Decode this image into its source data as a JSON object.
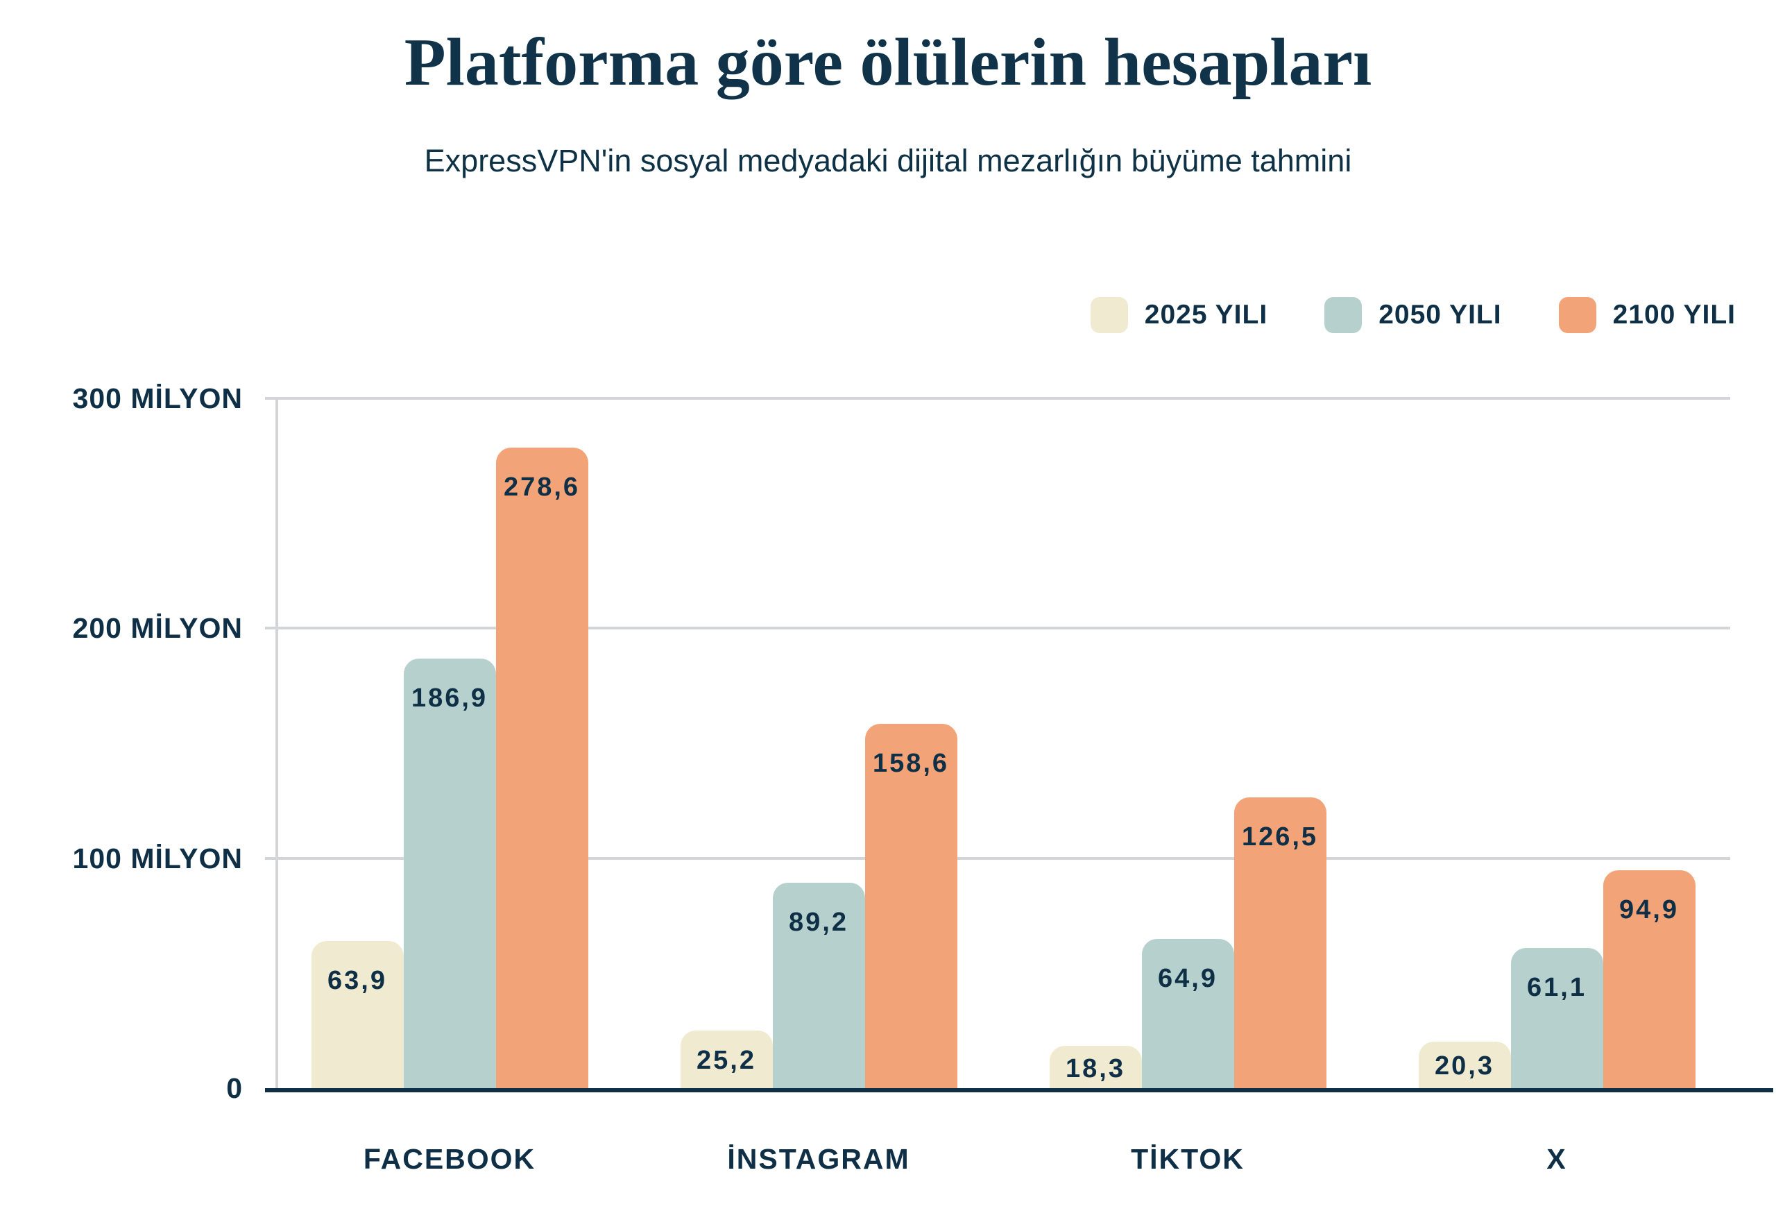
{
  "chart_data": {
    "type": "bar",
    "title": "Platforma göre ölülerin hesapları",
    "subtitle": "ExpressVPN'in sosyal medyadaki dijital mezarlığın büyüme tahmini",
    "categories": [
      "FACEBOOK",
      "İNSTAGRAM",
      "TİKTOK",
      "X"
    ],
    "series": [
      {
        "name": "2025 YILI",
        "color": "#f0ead1",
        "values": [
          63.9,
          25.2,
          18.3,
          20.3
        ],
        "labels": [
          "63,9",
          "25,2",
          "18,3",
          "20,3"
        ]
      },
      {
        "name": "2050 YILI",
        "color": "#b6d0ce",
        "values": [
          186.9,
          89.2,
          64.9,
          61.1
        ],
        "labels": [
          "186,9",
          "89,2",
          "64,9",
          "61,1"
        ]
      },
      {
        "name": "2100 YILI",
        "color": "#f2a377",
        "values": [
          278.6,
          158.6,
          126.5,
          94.9
        ],
        "labels": [
          "278,6",
          "158,6",
          "126,5",
          "94,9"
        ]
      }
    ],
    "y_axis": {
      "max": 300,
      "ticks": [
        {
          "value": 300,
          "label": "300 MİLYON"
        },
        {
          "value": 200,
          "label": "200 MİLYON"
        },
        {
          "value": 100,
          "label": "100 MİLYON"
        },
        {
          "value": 0,
          "label": "0"
        }
      ]
    },
    "unit": "milyon hesap",
    "legend_position": "top-right",
    "grid": true,
    "colors": {
      "text_navy": "#0e2f45",
      "title_navy": "#11334a",
      "gridline_gray": "#d3d5d8",
      "axis_navy": "#0e2f45",
      "background": "#ffffff"
    }
  }
}
